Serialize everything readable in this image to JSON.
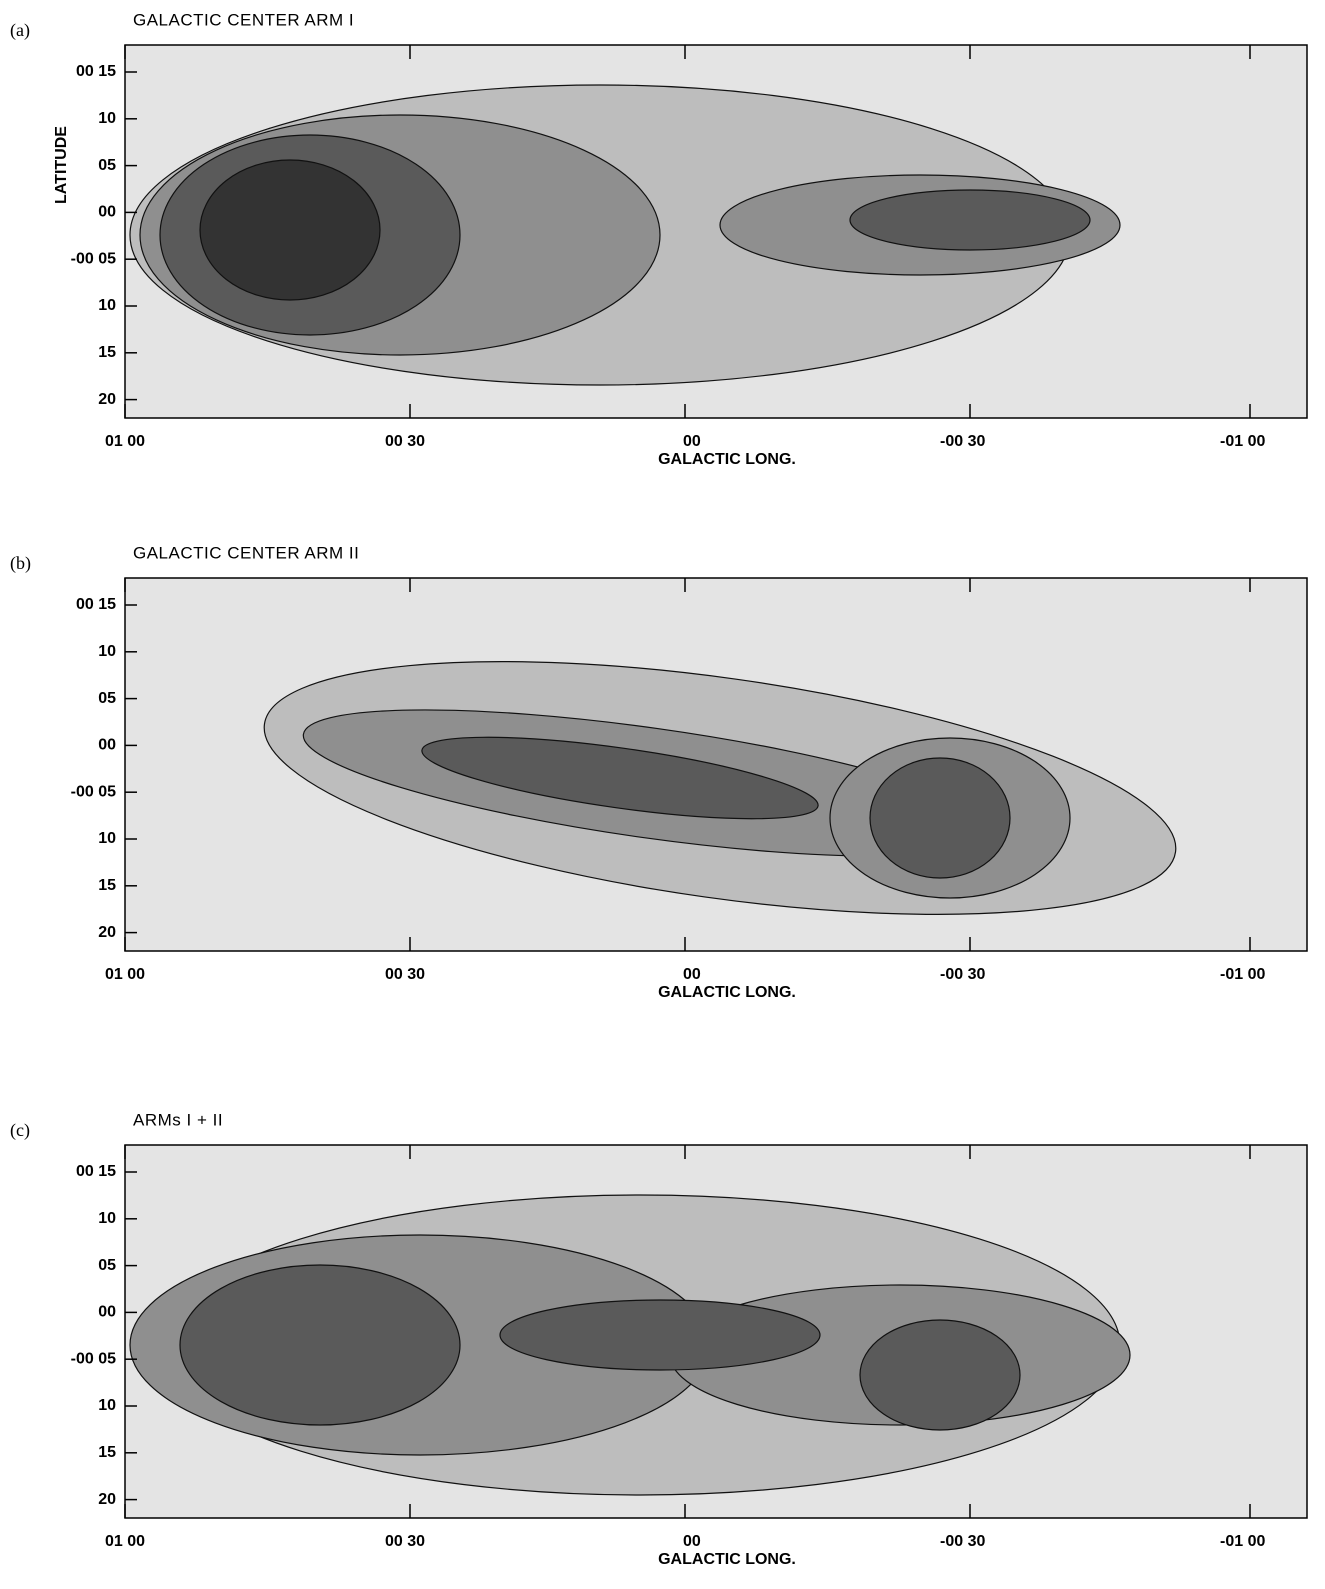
{
  "panels": [
    {
      "label": "(a)",
      "title": "GALACTIC CENTER ARM I",
      "y_axis_label": "LATITUDE",
      "y_ticks": [
        "00 15",
        "10",
        "05",
        "00",
        "-00 05",
        "10",
        "15",
        "20"
      ],
      "x_ticks": [
        "01 00",
        "00 30",
        "00",
        "-00 30",
        "-01 00"
      ],
      "x_axis_label": "GALACTIC LONG."
    },
    {
      "label": "(b)",
      "title": "GALACTIC CENTER ARM II",
      "y_ticks": [
        "00 15",
        "10",
        "05",
        "00",
        "-00 05",
        "10",
        "15",
        "20"
      ],
      "x_ticks": [
        "01 00",
        "00 30",
        "00",
        "-00 30",
        "-01 00"
      ],
      "x_axis_label": "GALACTIC LONG."
    },
    {
      "label": "(c)",
      "title": "ARMs I + II",
      "y_ticks": [
        "00 15",
        "10",
        "05",
        "00",
        "-00 05",
        "10",
        "15",
        "20"
      ],
      "x_ticks": [
        "01 00",
        "00 30",
        "00",
        "-00 30",
        "-01 00"
      ],
      "x_axis_label": "GALACTIC LONG."
    }
  ]
}
